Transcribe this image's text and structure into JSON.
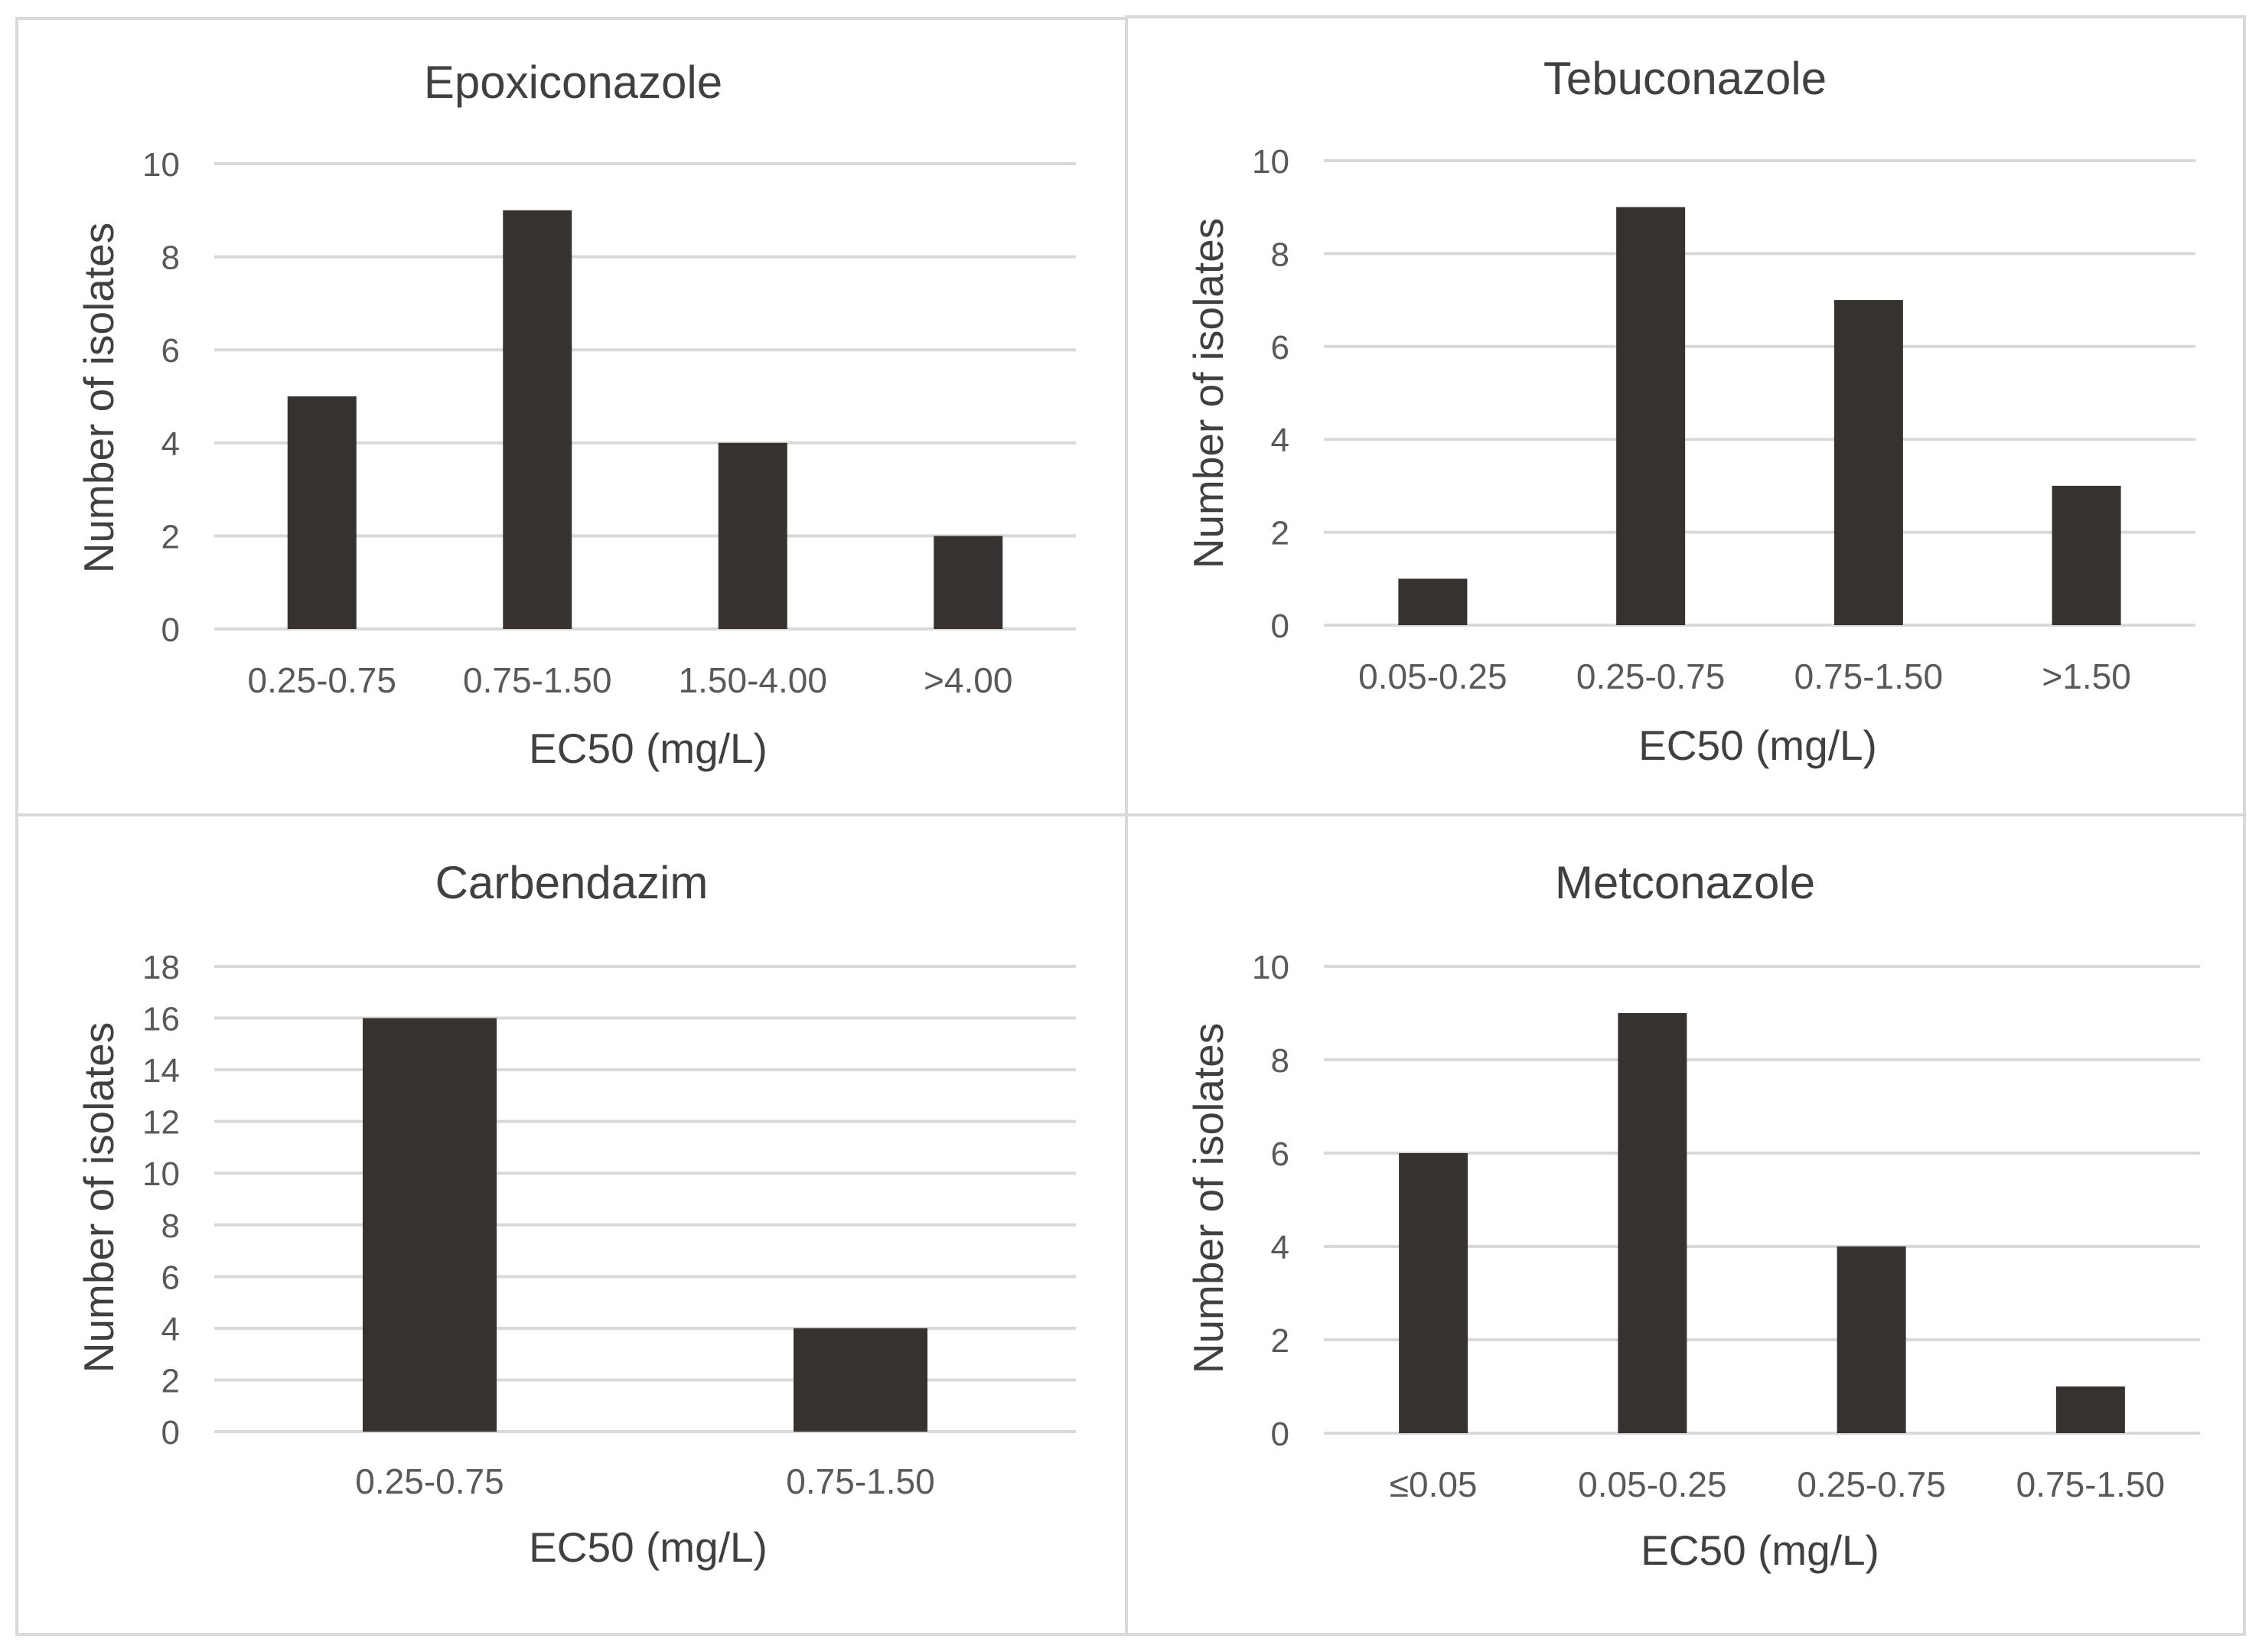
{
  "colors": {
    "bar": "#363230",
    "gridline": "#d9d9d9",
    "frame": "#d9d9d9",
    "title_text": "#404040",
    "tick_text": "#595959"
  },
  "chart_data": [
    {
      "type": "bar",
      "title": "Epoxiconazole",
      "categories": [
        "0.25-0.75",
        "0.75-1.50",
        "1.50-4.00",
        ">4.00"
      ],
      "values": [
        5,
        9,
        4,
        2
      ],
      "xlabel": "EC50 (mg/L)",
      "ylabel": "Number  of isolates",
      "ylim": [
        0,
        10
      ],
      "yticks": [
        0,
        2,
        4,
        6,
        8,
        10
      ],
      "grid": true,
      "legend": "none"
    },
    {
      "type": "bar",
      "title": "Tebuconazole",
      "categories": [
        "0.05-0.25",
        "0.25-0.75",
        "0.75-1.50",
        ">1.50"
      ],
      "values": [
        1,
        9,
        7,
        3
      ],
      "xlabel": "EC50 (mg/L)",
      "ylabel": "Number  of isolates",
      "ylim": [
        0,
        10
      ],
      "yticks": [
        0,
        2,
        4,
        6,
        8,
        10
      ],
      "grid": true,
      "legend": "none"
    },
    {
      "type": "bar",
      "title": "Carbendazim",
      "categories": [
        "0.25-0.75",
        "0.75-1.50"
      ],
      "values": [
        16,
        4
      ],
      "xlabel": "EC50 (mg/L)",
      "ylabel": "Number  of isolates",
      "ylim": [
        0,
        18
      ],
      "yticks": [
        0,
        2,
        4,
        6,
        8,
        10,
        12,
        14,
        16,
        18
      ],
      "grid": true,
      "legend": "none"
    },
    {
      "type": "bar",
      "title": "Metconazole",
      "categories": [
        "≤0.05",
        "0.05-0.25",
        "0.25-0.75",
        "0.75-1.50"
      ],
      "values": [
        6,
        9,
        4,
        1
      ],
      "xlabel": "EC50 (mg/L)",
      "ylabel": "Number  of isolates",
      "ylim": [
        0,
        10
      ],
      "yticks": [
        0,
        2,
        4,
        6,
        8,
        10
      ],
      "grid": true,
      "legend": "none"
    }
  ]
}
